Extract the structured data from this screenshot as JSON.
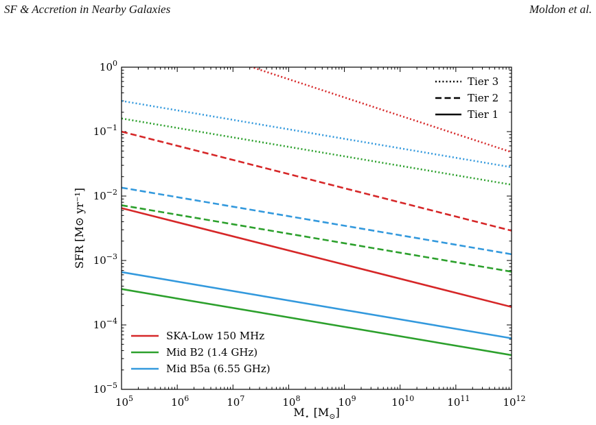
{
  "header": {
    "left": "SF & Accretion in Nearby Galaxies",
    "right": "Moldon et al."
  },
  "chart_data": {
    "type": "line",
    "xlabel": "M",
    "xlabel_sub": "⋆",
    "xlabel_unit_open": "[M",
    "xlabel_unit_sub": "⊙",
    "xlabel_unit_close": "]",
    "ylabel": "SFR [M⊙ yr⁻¹]",
    "xscale": "log",
    "yscale": "log",
    "xlim": [
      100000,
      1000000000000
    ],
    "ylim": [
      1e-05,
      1
    ],
    "grid": false,
    "x_ticks": [
      {
        "base": "10",
        "exp": "5"
      },
      {
        "base": "10",
        "exp": "6"
      },
      {
        "base": "10",
        "exp": "7"
      },
      {
        "base": "10",
        "exp": "8"
      },
      {
        "base": "10",
        "exp": "9"
      },
      {
        "base": "10",
        "exp": "10"
      },
      {
        "base": "10",
        "exp": "11"
      },
      {
        "base": "10",
        "exp": "12"
      }
    ],
    "y_ticks": [
      {
        "base": "10",
        "exp": "−5"
      },
      {
        "base": "10",
        "exp": "−4"
      },
      {
        "base": "10",
        "exp": "−3"
      },
      {
        "base": "10",
        "exp": "−2"
      },
      {
        "base": "10",
        "exp": "−1"
      },
      {
        "base": "10",
        "exp": "0"
      }
    ],
    "style_legend": {
      "position": "top-right",
      "entries": [
        {
          "label": "Tier 3",
          "dash": "dotted"
        },
        {
          "label": "Tier 2",
          "dash": "dashed"
        },
        {
          "label": "Tier 1",
          "dash": "solid"
        }
      ]
    },
    "color_legend": {
      "position": "bottom-left",
      "entries": [
        {
          "label": "SKA-Low 150 MHz",
          "color": "#d62728"
        },
        {
          "label": "Mid B2 (1.4 GHz)",
          "color": "#2ca02c"
        },
        {
          "label": "Mid B5a (6.55 GHz)",
          "color": "#3399dd"
        }
      ]
    },
    "series": [
      {
        "band": "SKA-Low 150 MHz",
        "tier": "Tier 3",
        "color": "#d62728",
        "dash": "dotted",
        "x": [
          100000,
          1000000000000
        ],
        "y": [
          4.6,
          0.048
        ]
      },
      {
        "band": "Mid B5a (6.55 GHz)",
        "tier": "Tier 3",
        "color": "#3399dd",
        "dash": "dotted",
        "x": [
          100000,
          1000000000000
        ],
        "y": [
          0.3,
          0.028
        ]
      },
      {
        "band": "Mid B2 (1.4 GHz)",
        "tier": "Tier 3",
        "color": "#2ca02c",
        "dash": "dotted",
        "x": [
          100000,
          1000000000000
        ],
        "y": [
          0.16,
          0.015
        ]
      },
      {
        "band": "SKA-Low 150 MHz",
        "tier": "Tier 2",
        "color": "#d62728",
        "dash": "dashed",
        "x": [
          100000,
          1000000000000
        ],
        "y": [
          0.1,
          0.0029
        ]
      },
      {
        "band": "Mid B5a (6.55 GHz)",
        "tier": "Tier 2",
        "color": "#3399dd",
        "dash": "dashed",
        "x": [
          100000,
          1000000000000
        ],
        "y": [
          0.0135,
          0.00125
        ]
      },
      {
        "band": "Mid B2 (1.4 GHz)",
        "tier": "Tier 2",
        "color": "#2ca02c",
        "dash": "dashed",
        "x": [
          100000,
          1000000000000
        ],
        "y": [
          0.0072,
          0.00067
        ]
      },
      {
        "band": "SKA-Low 150 MHz",
        "tier": "Tier 1",
        "color": "#d62728",
        "dash": "solid",
        "x": [
          100000,
          1000000000000
        ],
        "y": [
          0.0065,
          0.00019
        ]
      },
      {
        "band": "Mid B5a (6.55 GHz)",
        "tier": "Tier 1",
        "color": "#3399dd",
        "dash": "solid",
        "x": [
          100000,
          1000000000000
        ],
        "y": [
          0.00066,
          6.2e-05
        ]
      },
      {
        "band": "Mid B2 (1.4 GHz)",
        "tier": "Tier 1",
        "color": "#2ca02c",
        "dash": "solid",
        "x": [
          100000,
          1000000000000
        ],
        "y": [
          0.00036,
          3.4e-05
        ]
      }
    ]
  }
}
